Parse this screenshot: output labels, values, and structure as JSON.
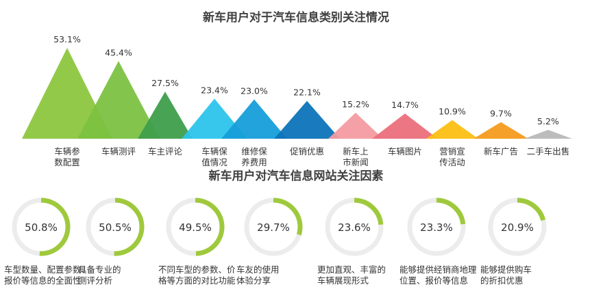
{
  "chart_data": [
    {
      "type": "area",
      "title": "新车用户对于汽车信息类别关注情况",
      "categories": [
        "车辆参\n数配置",
        "车辆测评",
        "车主评论",
        "车辆保\n值情况",
        "维修保\n养费用",
        "促销优惠",
        "新车上\n市新闻",
        "车辆图片",
        "营销宣\n传活动",
        "新车广告",
        "二手车出售"
      ],
      "values": [
        53.1,
        45.4,
        27.5,
        23.4,
        23.0,
        22.1,
        15.2,
        14.7,
        10.9,
        9.7,
        5.2
      ],
      "value_labels": [
        "53.1%",
        "45.4%",
        "27.5%",
        "23.4%",
        "23.0%",
        "22.1%",
        "15.2%",
        "14.7%",
        "10.9%",
        "9.7%",
        "5.2%"
      ],
      "colors": [
        "#8dc63f",
        "#7cc242",
        "#3f9e4b",
        "#2cc4ec",
        "#169ed9",
        "#0d74bb",
        "#f39ba1",
        "#ec6f7c",
        "#fcbf14",
        "#f49b1e",
        "#b8b8b8"
      ],
      "ylim": [
        0,
        60
      ]
    },
    {
      "type": "pie",
      "title": "新车用户对汽车信息网站关注因素",
      "categories": [
        "车型数量、配置参数、\n报价等信息的全面性",
        "具备专业的\n测评分析",
        "不同车型的参数、价\n格等方面的对比功能",
        "车友的使用\n体验分享",
        "更加直观、丰富的\n车辆展现形式",
        "能够提供经销商地理\n位置、报价等信息",
        "能够提供购车\n的折扣优惠"
      ],
      "values": [
        50.8,
        50.5,
        49.5,
        29.7,
        23.6,
        23.3,
        20.9
      ],
      "value_labels": [
        "50.8%",
        "50.5%",
        "49.5%",
        "29.7%",
        "23.6%",
        "23.3%",
        "20.9%"
      ],
      "ring_color": "#9fc93c",
      "track_color": "#ececec"
    }
  ]
}
